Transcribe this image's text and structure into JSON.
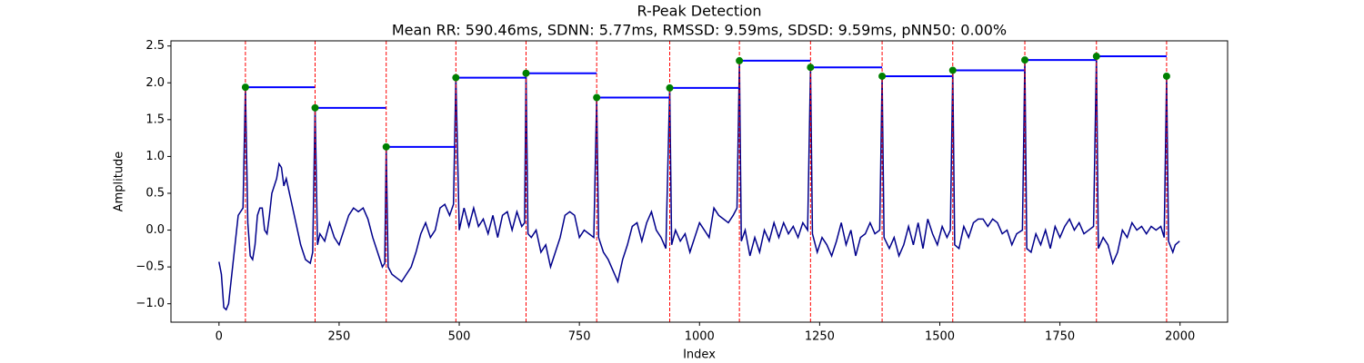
{
  "chart_data": {
    "type": "line",
    "title": "R-Peak Detection",
    "subtitle": "Mean RR: 590.46ms, SDNN: 5.77ms, RMSSD: 9.59ms, SDSD: 9.59ms, pNN50: 0.00%",
    "xlabel": "Index",
    "ylabel": "Amplitude",
    "color": "#00008b",
    "peak_color": "green",
    "rr_color": "blue",
    "vline_color": "red",
    "x": [
      0,
      5,
      10,
      15,
      20,
      25,
      30,
      35,
      40,
      45,
      50,
      55,
      60,
      65,
      70,
      75,
      80,
      85,
      90,
      95,
      100,
      105,
      110,
      115,
      120,
      125,
      130,
      135,
      140,
      145,
      150,
      160,
      170,
      180,
      190,
      195,
      200,
      205,
      210,
      220,
      230,
      240,
      250,
      260,
      270,
      280,
      290,
      300,
      310,
      320,
      330,
      340,
      345,
      348,
      352,
      360,
      370,
      380,
      390,
      400,
      410,
      420,
      430,
      440,
      450,
      460,
      470,
      480,
      488,
      493,
      500,
      510,
      520,
      530,
      540,
      550,
      560,
      570,
      580,
      590,
      600,
      610,
      620,
      630,
      636,
      639,
      643,
      650,
      660,
      670,
      680,
      690,
      700,
      710,
      720,
      730,
      740,
      750,
      760,
      770,
      780,
      786,
      790,
      800,
      810,
      820,
      830,
      840,
      850,
      860,
      870,
      880,
      890,
      900,
      910,
      920,
      930,
      938,
      942,
      950,
      960,
      970,
      980,
      990,
      1000,
      1010,
      1020,
      1030,
      1040,
      1050,
      1060,
      1070,
      1078,
      1083,
      1087,
      1095,
      1105,
      1115,
      1125,
      1135,
      1145,
      1155,
      1165,
      1175,
      1185,
      1195,
      1205,
      1215,
      1225,
      1231,
      1235,
      1245,
      1255,
      1265,
      1275,
      1285,
      1295,
      1305,
      1315,
      1325,
      1335,
      1345,
      1355,
      1365,
      1375,
      1380,
      1384,
      1395,
      1405,
      1415,
      1425,
      1435,
      1445,
      1455,
      1465,
      1475,
      1485,
      1495,
      1505,
      1515,
      1522,
      1527,
      1531,
      1540,
      1550,
      1560,
      1570,
      1580,
      1590,
      1600,
      1610,
      1620,
      1630,
      1640,
      1650,
      1660,
      1672,
      1677,
      1681,
      1690,
      1700,
      1710,
      1720,
      1730,
      1740,
      1750,
      1760,
      1770,
      1780,
      1790,
      1800,
      1810,
      1820,
      1826,
      1830,
      1840,
      1850,
      1860,
      1870,
      1880,
      1890,
      1900,
      1910,
      1920,
      1930,
      1940,
      1950,
      1960,
      1967,
      1972,
      1976,
      1985,
      1990,
      1999
    ],
    "values": [
      -0.43,
      -0.6,
      -1.05,
      -1.08,
      -1.0,
      -0.7,
      -0.4,
      -0.1,
      0.2,
      0.25,
      0.3,
      1.94,
      0.1,
      -0.35,
      -0.4,
      -0.2,
      0.2,
      0.3,
      0.3,
      0.0,
      -0.05,
      0.2,
      0.5,
      0.6,
      0.7,
      0.9,
      0.85,
      0.6,
      0.7,
      0.55,
      0.4,
      0.1,
      -0.2,
      -0.4,
      -0.45,
      -0.3,
      1.66,
      -0.2,
      -0.05,
      -0.15,
      0.1,
      -0.1,
      -0.2,
      0.0,
      0.2,
      0.3,
      0.25,
      0.3,
      0.15,
      -0.1,
      -0.3,
      -0.5,
      -0.45,
      1.13,
      -0.5,
      -0.6,
      -0.65,
      -0.7,
      -0.6,
      -0.5,
      -0.3,
      -0.05,
      0.1,
      -0.1,
      0.0,
      0.3,
      0.35,
      0.2,
      0.35,
      2.07,
      0.0,
      0.3,
      0.05,
      0.3,
      0.05,
      0.15,
      -0.05,
      0.2,
      -0.1,
      0.2,
      0.25,
      0.0,
      0.25,
      0.05,
      0.1,
      2.13,
      -0.05,
      -0.1,
      0.0,
      -0.3,
      -0.2,
      -0.5,
      -0.3,
      -0.1,
      0.2,
      0.25,
      0.2,
      -0.1,
      0.0,
      -0.05,
      -0.1,
      1.8,
      -0.1,
      -0.3,
      -0.4,
      -0.55,
      -0.7,
      -0.4,
      -0.2,
      0.05,
      0.1,
      -0.15,
      0.1,
      0.25,
      0.0,
      -0.1,
      -0.25,
      1.93,
      -0.2,
      0.0,
      -0.15,
      -0.05,
      -0.3,
      -0.1,
      0.1,
      0.0,
      -0.1,
      0.3,
      0.2,
      0.15,
      0.1,
      0.2,
      0.3,
      2.3,
      -0.15,
      0.0,
      -0.35,
      -0.1,
      -0.3,
      0.0,
      -0.15,
      0.1,
      -0.1,
      0.1,
      -0.05,
      0.05,
      -0.1,
      0.1,
      0.0,
      2.21,
      -0.05,
      -0.3,
      -0.1,
      -0.2,
      -0.35,
      -0.15,
      0.1,
      -0.2,
      0.0,
      -0.35,
      -0.1,
      -0.05,
      0.1,
      -0.05,
      0.0,
      2.09,
      -0.1,
      -0.25,
      -0.1,
      -0.35,
      -0.2,
      0.05,
      -0.2,
      0.1,
      -0.25,
      0.15,
      -0.05,
      -0.2,
      0.05,
      -0.1,
      0.0,
      2.17,
      -0.2,
      -0.25,
      0.05,
      -0.1,
      0.1,
      0.15,
      0.15,
      0.05,
      0.15,
      0.1,
      -0.05,
      0.0,
      -0.2,
      -0.05,
      0.0,
      2.31,
      -0.25,
      -0.3,
      -0.05,
      -0.2,
      0.0,
      -0.25,
      0.05,
      -0.1,
      0.05,
      0.15,
      0.0,
      0.1,
      -0.05,
      0.0,
      0.05,
      2.36,
      -0.25,
      -0.1,
      -0.2,
      -0.45,
      -0.3,
      0.0,
      -0.1,
      0.1,
      0.0,
      0.05,
      -0.05,
      0.05,
      0.0,
      0.05,
      -0.1,
      2.09,
      -0.15,
      -0.3,
      -0.2,
      -0.15
    ],
    "peak_x": [
      55,
      200,
      348,
      493,
      639,
      786,
      938,
      1083,
      1231,
      1380,
      1527,
      1677,
      1826,
      1972
    ],
    "peak_values": [
      1.94,
      1.66,
      1.13,
      2.07,
      2.13,
      1.8,
      1.93,
      2.3,
      2.21,
      2.09,
      2.17,
      2.31,
      2.36,
      2.09
    ],
    "xlim": [
      -99.95,
      2098.95
    ],
    "ylim": [
      -1.25,
      2.57
    ],
    "xticks": [
      0,
      250,
      500,
      750,
      1000,
      1250,
      1500,
      1750,
      2000
    ],
    "yticks": [
      {
        "value": -1,
        "label": "−1.0"
      },
      {
        "value": -0.5,
        "label": "−0.5"
      },
      {
        "value": 0,
        "label": "0.0"
      },
      0.5,
      {
        "value": 1,
        "label": "1.0"
      },
      1.5,
      {
        "value": 2,
        "label": "2.0"
      },
      2.5
    ]
  }
}
